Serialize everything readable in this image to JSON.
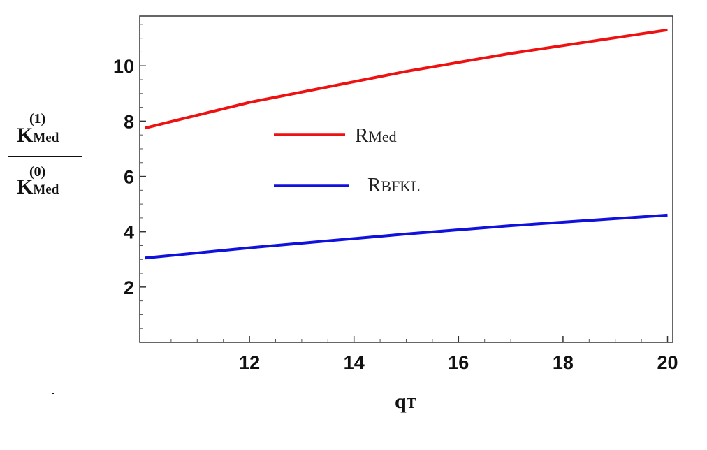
{
  "chart_data": {
    "type": "line",
    "xlabel": {
      "main": "q",
      "sub": "T"
    },
    "ylabel": {
      "numerator": {
        "main": "K",
        "sub": "Med",
        "sup": "(1)"
      },
      "denominator": {
        "main": "K",
        "sub": "Med",
        "sup": "(0)"
      }
    },
    "xlim": [
      9.9,
      20.1
    ],
    "ylim": [
      0,
      11.8
    ],
    "xticks": [
      12,
      14,
      16,
      18,
      20
    ],
    "yticks": [
      2,
      4,
      6,
      8,
      10
    ],
    "grid": false,
    "legend_position": "upper-center",
    "series": [
      {
        "name": "R_Med",
        "label_main": "R",
        "label_sub": "Med",
        "color": "#ee1111",
        "points": [
          [
            10,
            7.75
          ],
          [
            12,
            8.68
          ],
          [
            15,
            9.8
          ],
          [
            17,
            10.45
          ],
          [
            20,
            11.3
          ]
        ]
      },
      {
        "name": "R_BFKL",
        "label_main": "R",
        "label_sub": "BFKL",
        "color": "#1111dd",
        "points": [
          [
            10,
            3.05
          ],
          [
            12,
            3.42
          ],
          [
            15,
            3.92
          ],
          [
            17,
            4.22
          ],
          [
            20,
            4.6
          ]
        ]
      }
    ]
  }
}
